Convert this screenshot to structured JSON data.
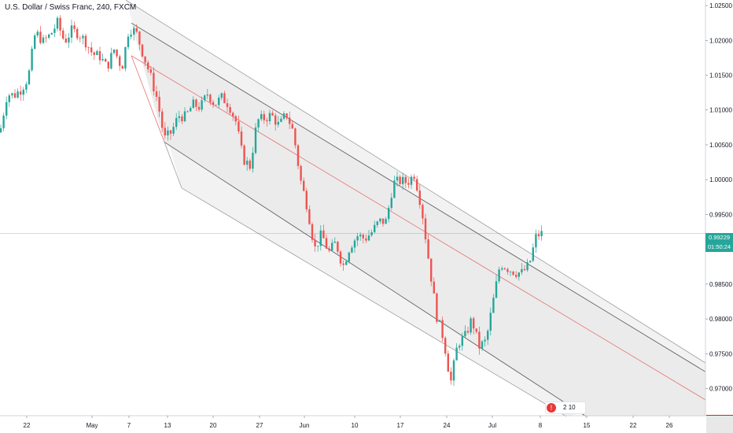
{
  "header": {
    "title": "U.S. Dollar / Swiss Franc, 240, FXCM"
  },
  "widget": {
    "icon_name": "alert-icon",
    "count": "2",
    "value": "10"
  },
  "colors": {
    "up": "#26a69a",
    "down": "#ef5350",
    "last_price": "#26a69a",
    "channel_mid": "#e57373",
    "channel_line": "#9e9e9e"
  },
  "last_price": {
    "value": "0.99229",
    "countdown": "01:50:24"
  },
  "chart_data": {
    "type": "candlestick",
    "title": "U.S. Dollar / Swiss Franc, 240, FXCM",
    "xlabel": "",
    "ylabel": "",
    "ylim": [
      0.9661,
      1.0258
    ],
    "x_tick_labels": [
      "22",
      "May",
      "7",
      "13",
      "20",
      "27",
      "Jun",
      "10",
      "17",
      "24",
      "Jul",
      "8",
      "15",
      "22",
      "26"
    ],
    "y_tick_labels": [
      "1.02500",
      "1.02000",
      "1.01500",
      "1.01000",
      "1.00500",
      "1.00000",
      "0.99500",
      "0.99000",
      "0.98500",
      "0.98000",
      "0.97500",
      "0.97000"
    ],
    "grid": false,
    "legend": "none",
    "close_path": [
      [
        0,
        1.0068
      ],
      [
        9,
        1.0123
      ],
      [
        18,
        1.0121
      ],
      [
        27,
        1.013
      ],
      [
        36,
        1.0147
      ],
      [
        45,
        1.0212
      ],
      [
        55,
        1.0198
      ],
      [
        64,
        1.0208
      ],
      [
        73,
        1.0225
      ],
      [
        82,
        1.0198
      ],
      [
        91,
        1.0214
      ],
      [
        100,
        1.021
      ],
      [
        109,
        1.0198
      ],
      [
        118,
        1.018
      ],
      [
        127,
        1.0177
      ],
      [
        136,
        1.0161
      ],
      [
        145,
        1.0187
      ],
      [
        155,
        1.016
      ],
      [
        164,
        1.0218
      ],
      [
        173,
        1.0212
      ],
      [
        182,
        1.018
      ],
      [
        191,
        1.015
      ],
      [
        200,
        1.0115
      ],
      [
        209,
        1.0058
      ],
      [
        218,
        1.0068
      ],
      [
        227,
        1.0092
      ],
      [
        236,
        1.009
      ],
      [
        245,
        1.0108
      ],
      [
        255,
        1.0104
      ],
      [
        264,
        1.0124
      ],
      [
        273,
        1.0108
      ],
      [
        282,
        1.0118
      ],
      [
        291,
        1.0108
      ],
      [
        300,
        1.0083
      ],
      [
        309,
        1.003
      ],
      [
        318,
        1.0019
      ],
      [
        327,
        1.0085
      ],
      [
        336,
        1.0088
      ],
      [
        345,
        1.0093
      ],
      [
        355,
        1.0077
      ],
      [
        364,
        1.0095
      ],
      [
        373,
        1.0068
      ],
      [
        382,
        1.0
      ],
      [
        391,
        0.996
      ],
      [
        400,
        0.99
      ],
      [
        409,
        0.9922
      ],
      [
        418,
        0.9895
      ],
      [
        427,
        0.991
      ],
      [
        436,
        0.9875
      ],
      [
        445,
        0.9905
      ],
      [
        455,
        0.992
      ],
      [
        464,
        0.9915
      ],
      [
        473,
        0.9925
      ],
      [
        482,
        0.994
      ],
      [
        491,
        0.994
      ],
      [
        500,
        0.9995
      ],
      [
        509,
        0.9998
      ],
      [
        518,
        0.9996
      ],
      [
        527,
        1.0008
      ],
      [
        536,
        0.996
      ],
      [
        545,
        0.9885
      ],
      [
        555,
        0.9805
      ],
      [
        564,
        0.9772
      ],
      [
        573,
        0.9708
      ],
      [
        582,
        0.9765
      ],
      [
        591,
        0.9774
      ],
      [
        600,
        0.98
      ],
      [
        609,
        0.976
      ],
      [
        618,
        0.9768
      ],
      [
        627,
        0.9825
      ],
      [
        636,
        0.988
      ],
      [
        645,
        0.9873
      ],
      [
        655,
        0.9867
      ],
      [
        664,
        0.9866
      ],
      [
        673,
        0.9878
      ],
      [
        682,
        0.992
      ],
      [
        691,
        0.9923
      ]
    ],
    "channel": {
      "median_line": [
        [
          167,
          1.0178
        ],
        [
          932,
          0.966
        ]
      ],
      "upper_outer": [
        [
          160,
          1.0258
        ],
        [
          932,
          0.9712
        ]
      ],
      "upper_inner": [
        [
          167,
          1.0225
        ],
        [
          932,
          0.97
        ]
      ],
      "lower_inner": [
        [
          209,
          1.0054
        ],
        [
          745,
          0.966
        ]
      ],
      "lower_outer": [
        [
          231,
          0.9988
        ],
        [
          720,
          0.966
        ]
      ]
    },
    "last_price": 0.99229
  }
}
